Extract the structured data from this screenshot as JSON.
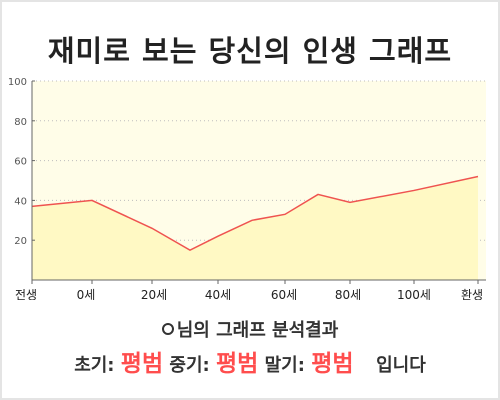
{
  "title": "재미로 보는 당신의 인생 그래프",
  "colors": {
    "plot_bg": "#fffde8",
    "area_fill": "#fff9c4",
    "line": "#ef5350",
    "grid": "#bdbdbd",
    "axis": "#666666",
    "highlight": "#ff4d4d"
  },
  "chart_data": {
    "type": "area",
    "x_labels": [
      "전생",
      "0세",
      "20세",
      "40세",
      "60세",
      "80세",
      "100세",
      "환생"
    ],
    "y_ticks": [
      20,
      40,
      60,
      80,
      100
    ],
    "ylim": [
      0,
      100
    ],
    "series": [
      {
        "points": [
          {
            "x": "전생",
            "y": 37
          },
          {
            "x": "0세",
            "y": 40
          },
          {
            "x": "20세",
            "y": 26
          },
          {
            "x": "30세",
            "y": 15
          },
          {
            "x": "40세",
            "y": 22
          },
          {
            "x": "50세",
            "y": 30
          },
          {
            "x": "60세",
            "y": 33
          },
          {
            "x": "70세",
            "y": 43
          },
          {
            "x": "80세",
            "y": 39
          },
          {
            "x": "100세",
            "y": 45
          },
          {
            "x": "환생",
            "y": 52
          }
        ]
      }
    ],
    "grid": true,
    "legend": "none"
  },
  "result": {
    "subtitle": "님의 그래프 분석결과",
    "early_label": "초기:",
    "early_value": "평범",
    "mid_label": "중기:",
    "mid_value": "평범",
    "late_label": "말기:",
    "late_value": "평범",
    "suffix": "입니다"
  }
}
